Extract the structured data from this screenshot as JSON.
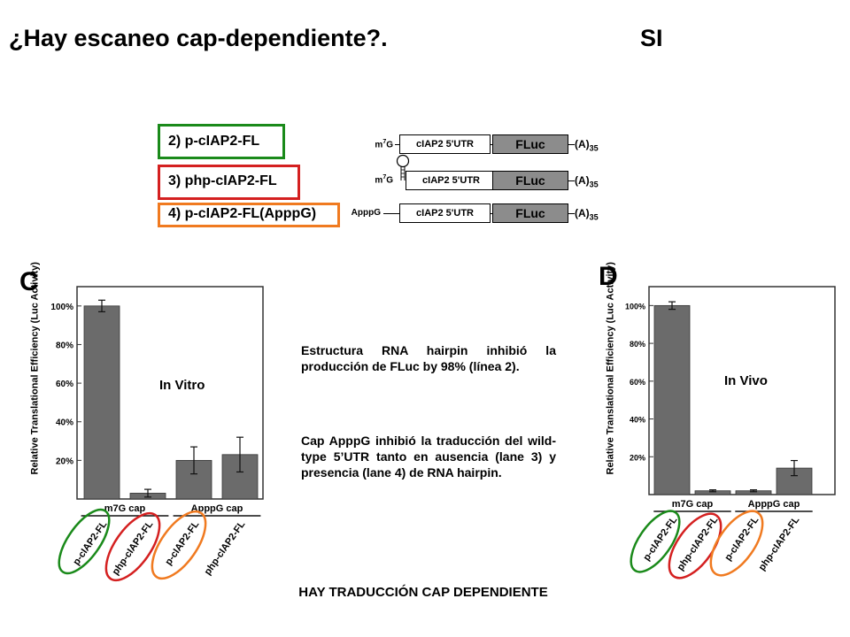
{
  "header": {
    "title": "¿Hay escaneo cap-dependiente?.",
    "answer": "SI"
  },
  "constructs": {
    "labels": [
      "2) p-cIAP2-FL",
      "3) php-cIAP2-FL",
      "4) p-cIAP2-FL(ApppG)"
    ],
    "box_colors": [
      "#1a8a1a",
      "#d42020",
      "#f07a20"
    ],
    "rows": [
      {
        "prefix": "m7G",
        "utr": "cIAP2 5'UTR",
        "orf": "FLuc",
        "tail": "(A)",
        "tail_sub": "35"
      },
      {
        "prefix": "m7G",
        "utr": "cIAP2 5'UTR",
        "orf": "FLuc",
        "tail": "(A)",
        "tail_sub": "35"
      },
      {
        "prefix": "ApppG",
        "utr": "cIAP2 5'UTR",
        "orf": "FLuc",
        "tail": "(A)",
        "tail_sub": "35"
      }
    ]
  },
  "panel_c": {
    "letter": "C"
  },
  "panel_d": {
    "letter": "D"
  },
  "chart_data": [
    {
      "type": "bar",
      "annotation": "In Vitro",
      "ylabel": "Relative Translational Efficiency (Luc Activity)",
      "yticks": [
        "20%",
        "40%",
        "60%",
        "80%",
        "100%"
      ],
      "ylim": [
        0,
        110
      ],
      "categories": [
        "p-cIAP2-FL",
        "php-cIAP2-FL",
        "p-cIAP2-FL",
        "php-cIAP2-FL"
      ],
      "groups": [
        "m7G cap",
        "ApppG cap"
      ],
      "values": [
        100,
        3,
        20,
        23
      ],
      "errors": [
        3,
        2,
        7,
        9
      ]
    },
    {
      "type": "bar",
      "annotation": "In Vivo",
      "ylabel": "Relative Translational Efficiency (Luc Activity)",
      "yticks": [
        "20%",
        "40%",
        "60%",
        "80%",
        "100%"
      ],
      "ylim": [
        0,
        110
      ],
      "categories": [
        "p-cIAP2-FL",
        "php-cIAP2-FL",
        "p-cIAP2-FL",
        "php-cIAP2-FL"
      ],
      "groups": [
        "m7G cap",
        "ApppG cap"
      ],
      "values": [
        100,
        2,
        2,
        14
      ],
      "errors": [
        2,
        0.5,
        0.5,
        4
      ]
    }
  ],
  "text": {
    "para1": "Estructura RNA hairpin inhibió la producción de FLuc by 98% (línea 2).",
    "para2": "Cap ApppG inhibió la traducción del wild-type 5’UTR tanto en ausencia (lane 3) y presencia (lane 4) de RNA hairpin."
  },
  "footer": "HAY TRADUCCIÓN CAP DEPENDIENTE"
}
